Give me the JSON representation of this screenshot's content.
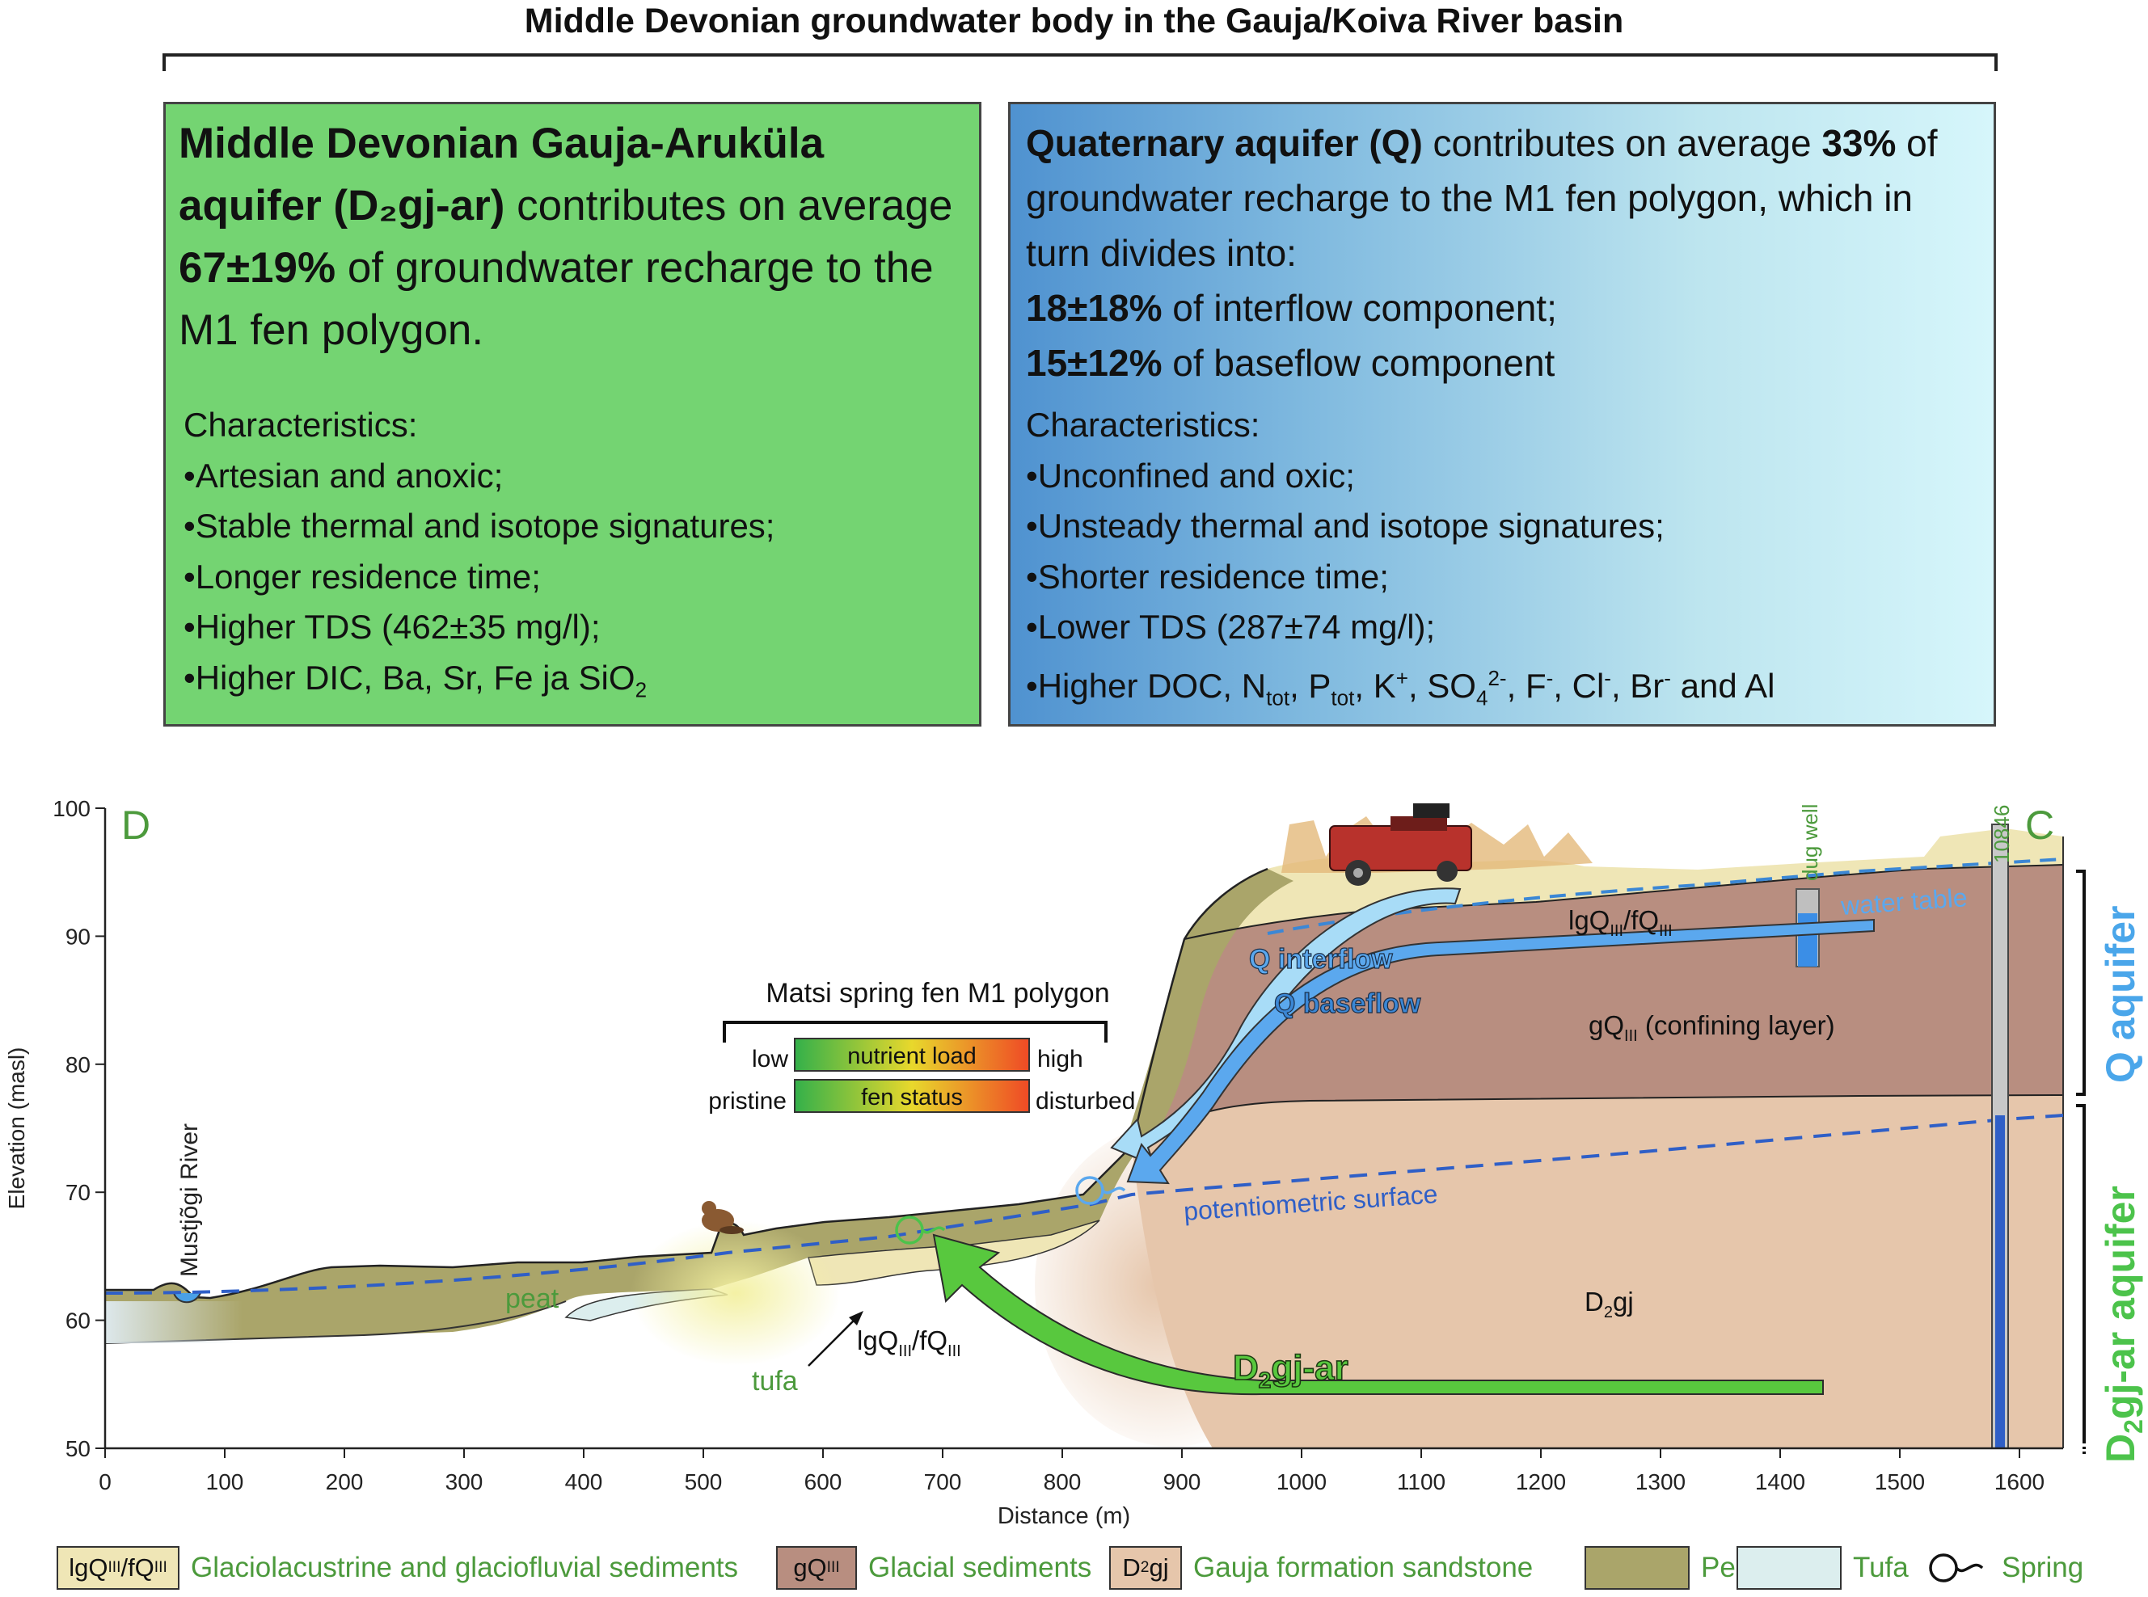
{
  "title": "Middle Devonian groundwater body in the Gauja/Koiva River basin",
  "left_box": {
    "lead_b1": "Middle Devonian Gauja-Aruküla aquifer (D₂gj-ar)",
    "lead_t1": " contributes on average ",
    "lead_b2": "67±19%",
    "lead_t2": " of groundwater recharge to the M1 fen polygon.",
    "char_heading": "Characteristics:",
    "c1": "•Artesian and anoxic;",
    "c2": "•Stable thermal and isotope signatures;",
    "c3": "•Longer residence time;",
    "c4": "•Higher TDS (462±35 mg/l);",
    "c5_main": "•Higher DIC, Ba, Sr, Fe ja SiO",
    "c5_sub": "2"
  },
  "right_box": {
    "lead_b1": "Quaternary aquifer (Q)",
    "lead_t1": " contributes on average ",
    "lead_b2": "33%",
    "lead_t2": " of groundwater recharge to the M1 fen polygon, which in turn divides into:",
    "lead_b3": "18±18%",
    "lead_t3": " of interflow component;",
    "lead_b4": "15±12%",
    "lead_t4": " of baseflow component",
    "char_heading": "Characteristics:",
    "c1": "•Unconfined and oxic;",
    "c2": "•Unsteady thermal and isotope signatures;",
    "c3": "•Shorter residence time;",
    "c4": "•Lower TDS (287±74 mg/l);",
    "c5_a": "•Higher DOC, N",
    "c5_b": "tot",
    "c5_c": ", P",
    "c5_d": "tot",
    "c5_e": ", K",
    "c5_f": "+",
    "c5_g": ", SO",
    "c5_h": "4",
    "c5_i": "2-",
    "c5_j": ", F",
    "c5_k": "-",
    "c5_l": ", Cl",
    "c5_m": "-",
    "c5_n": ", Br",
    "c5_o": "-",
    "c5_p": " and Al"
  },
  "cross_section": {
    "ylabel": "Elevation (masl)",
    "xlabel": "Distance (m)",
    "y_ticks": [
      "100",
      "90",
      "80",
      "70",
      "60",
      "50"
    ],
    "x_ticks": [
      "0",
      "100",
      "200",
      "300",
      "400",
      "500",
      "600",
      "700",
      "800",
      "900",
      "1000",
      "1100",
      "1200",
      "1300",
      "1400",
      "1500",
      "1600"
    ],
    "corner_left": "D",
    "corner_right": "C",
    "river": "Mustjõgi River",
    "peat": "peat",
    "tufa": "tufa",
    "lg_label_a": "lgQ",
    "lg_label_sub1": "III",
    "lg_label_b": "/fQ",
    "lg_label_sub2": "III",
    "gq_label_a": "gQ",
    "gq_label_sub": "III",
    "gq_label_b": " (confining layer)",
    "d2gj_a": "D",
    "d2gj_sub": "2",
    "d2gj_b": "gj",
    "d2gjar_a": "D",
    "d2gjar_sub": "2",
    "d2gjar_b": "gj-ar",
    "q_interflow": "Q interflow",
    "q_baseflow": "Q baseflow",
    "water_table": "water table",
    "potentiometric": "potentiometric surface",
    "dug_well": "dug well",
    "well_id": "10846",
    "fen_title": "Matsi spring fen M1 polygon",
    "low": "low",
    "high": "high",
    "nutrient": "nutrient load",
    "pristine": "pristine",
    "disturbed": "disturbed",
    "fen_status": "fen status",
    "q_aquifer": "Q aquifer",
    "d_aquifer_a": "D",
    "d_aquifer_sub": "2",
    "d_aquifer_b": "gj-ar aquifer"
  },
  "legend": {
    "lg_a": "lgQ",
    "lg_s1": "III",
    "lg_b": "/fQ",
    "lg_s2": "III",
    "lg_text": "Glaciolacustrine and glaciofluvial sediments",
    "gq_a": "gQ",
    "gq_s": "III",
    "gq_text": "Glacial sediments",
    "d_a": "D",
    "d_s": "2",
    "d_b": "gj",
    "d_text": "Gauja formation sandstone",
    "peat_text": "Peat",
    "tufa_text": "Tufa",
    "spring_text": "Spring"
  },
  "colors": {
    "green_box": "#74d472",
    "blue_box": "#4f92d0",
    "sandstone": "#e6c6ab",
    "glacial": "#b88e80",
    "lg_sediment": "#efe6b6",
    "peat": "#aaa56a",
    "tufa": "#dceeee",
    "arrow_green": "#58c83e",
    "arrow_blue": "#5a9ee0",
    "label_green": "#4c9a3c",
    "label_blue": "#3b87d5"
  }
}
